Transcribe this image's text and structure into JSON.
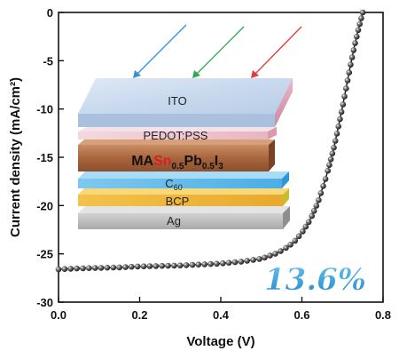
{
  "chart_data": {
    "type": "line",
    "xlabel": "Voltage (V)",
    "ylabel": "Current density (mA/cm²)",
    "xlim": [
      0.0,
      0.8
    ],
    "ylim": [
      -30,
      0
    ],
    "xticks": [
      "0.0",
      "0.2",
      "0.4",
      "0.6",
      "0.8"
    ],
    "yticks": [
      "0",
      "-5",
      "-10",
      "-15",
      "-20",
      "-25",
      "-30"
    ],
    "grid": false,
    "series": [
      {
        "color": "#111111",
        "marker": "sphere",
        "x": [
          0.0,
          0.05,
          0.1,
          0.15,
          0.2,
          0.25,
          0.3,
          0.35,
          0.4,
          0.45,
          0.5,
          0.52,
          0.54,
          0.56,
          0.58,
          0.6,
          0.62,
          0.64,
          0.66,
          0.68,
          0.7,
          0.71,
          0.72,
          0.73,
          0.74,
          0.75
        ],
        "y": [
          -26.6,
          -26.5,
          -26.45,
          -26.4,
          -26.3,
          -26.25,
          -26.2,
          -26.1,
          -26.0,
          -25.8,
          -25.5,
          -25.2,
          -24.9,
          -24.4,
          -23.8,
          -22.8,
          -21.5,
          -19.6,
          -17.0,
          -13.8,
          -9.8,
          -7.6,
          -5.4,
          -3.4,
          -1.6,
          0.0
        ]
      }
    ],
    "efficiency_label": "13.6%",
    "inset_device_layers": [
      "ITO",
      "PEDOT:PSS",
      "MASn₀.₅Pb₀.₅I₃",
      "C₆₀",
      "BCP",
      "Ag"
    ],
    "perovskite_formula": {
      "prefix": "MA",
      "sn": "Sn",
      "sn_sub": "0.5",
      "pb": "Pb",
      "pb_sub": "0.5",
      "i": "I",
      "i_sub": "3"
    },
    "c60_formula": {
      "base": "C",
      "sub": "60"
    },
    "light_arrow_colors": [
      "#3a8fd8",
      "#2fa84f",
      "#e23a3a"
    ],
    "colors": {
      "efficiency_text": "#2f9ad8",
      "curve": "#111111",
      "perovskite_sn": "#d92020"
    }
  }
}
